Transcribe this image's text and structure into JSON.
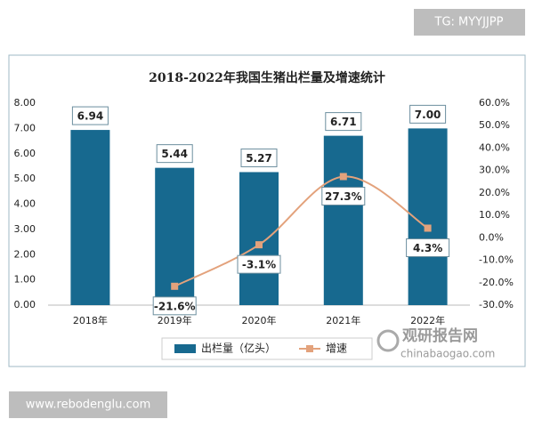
{
  "watermark_top": "TG: MYYJJPP",
  "watermark_bottom": "www.rebodenglu.com",
  "brand": {
    "name": "观研报告网",
    "site": "chinabaogao.com"
  },
  "chart_data": {
    "type": "bar_line",
    "title": "2018-2022年我国生猪出栏量及增速统计",
    "categories": [
      "2018年",
      "2019年",
      "2020年",
      "2021年",
      "2022年"
    ],
    "series": [
      {
        "name": "出栏量（亿头）",
        "color": "#17698f",
        "type": "bar",
        "values": [
          6.94,
          5.44,
          5.27,
          6.71,
          7.0
        ],
        "value_labels": [
          "6.94",
          "5.44",
          "5.27",
          "6.71",
          "7.00"
        ]
      },
      {
        "name": "增速",
        "color": "#e3a27c",
        "type": "line",
        "axis": "y2",
        "values": [
          null,
          -21.6,
          -3.1,
          27.3,
          4.3
        ],
        "value_labels": [
          null,
          "-21.6%",
          "-3.1%",
          "27.3%",
          "4.3%"
        ]
      }
    ],
    "ylim": [
      0,
      8
    ],
    "yticks": [
      {
        "value": 0,
        "label": "0.00"
      },
      {
        "value": 1,
        "label": "1.00"
      },
      {
        "value": 2,
        "label": "2.00"
      },
      {
        "value": 3,
        "label": "3.00"
      },
      {
        "value": 4,
        "label": "4.00"
      },
      {
        "value": 5,
        "label": "5.00"
      },
      {
        "value": 6,
        "label": "6.00"
      },
      {
        "value": 7,
        "label": "7.00"
      },
      {
        "value": 8,
        "label": "8.00"
      }
    ],
    "y2lim": [
      -30,
      60
    ],
    "y2ticks": [
      {
        "value": -30,
        "label": "-30.0%"
      },
      {
        "value": -20,
        "label": "-20.0%"
      },
      {
        "value": -10,
        "label": "-10.0%"
      },
      {
        "value": 0,
        "label": "0.0%"
      },
      {
        "value": 10,
        "label": "10.0%"
      },
      {
        "value": 20,
        "label": "20.0%"
      },
      {
        "value": 30,
        "label": "30.0%"
      },
      {
        "value": 40,
        "label": "40.0%"
      },
      {
        "value": 50,
        "label": "50.0%"
      },
      {
        "value": 60,
        "label": "60.0%"
      }
    ],
    "legend": "bottom"
  }
}
